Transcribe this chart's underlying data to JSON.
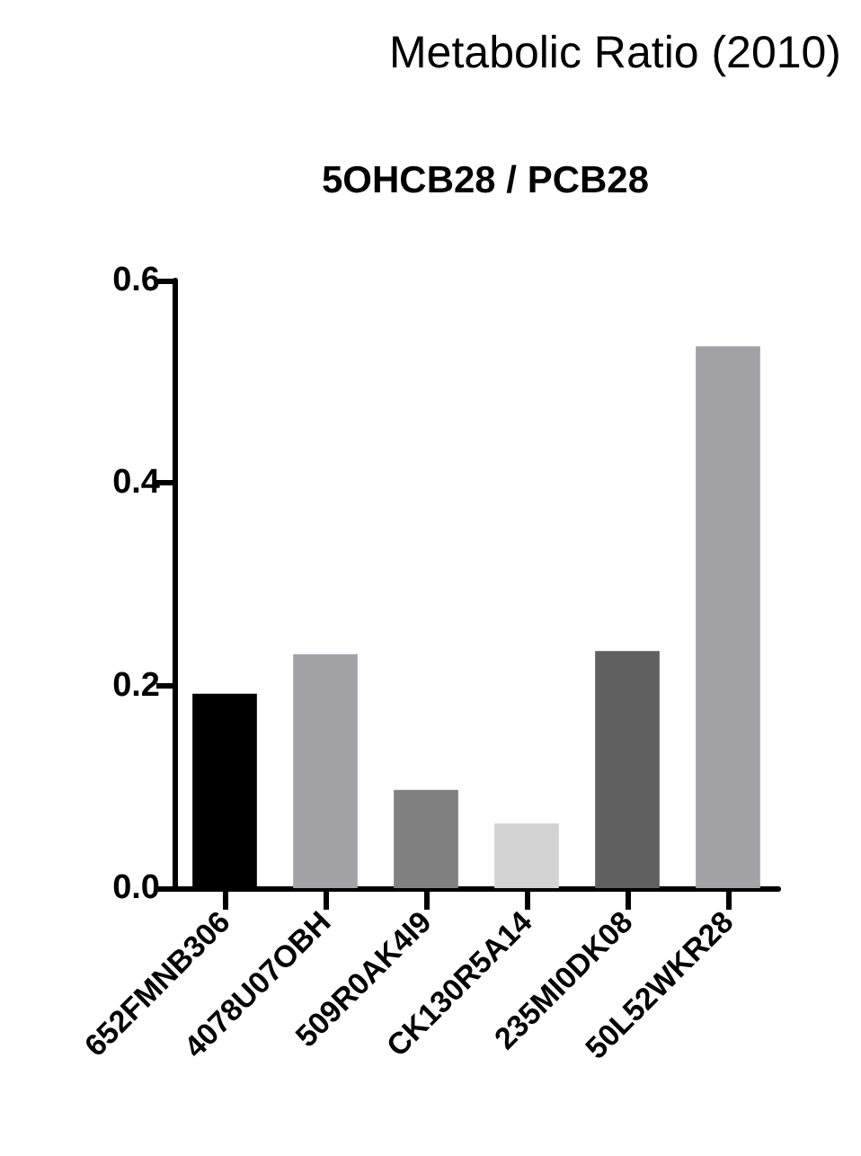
{
  "chart_data": {
    "type": "bar",
    "title": "Metabolic Ratio (2010)",
    "subtitle": "5OHCB28 / PCB28",
    "categories": [
      "652FMNB306",
      "4078U07OBH",
      "509R0AK4I9",
      "CK130R5A14",
      "235MI0DK08",
      "50L52WKR28"
    ],
    "values": [
      0.192,
      0.231,
      0.097,
      0.064,
      0.234,
      0.535
    ],
    "colors": [
      "#000000",
      "#a3a3a7",
      "#808080",
      "#d3d3d3",
      "#606060",
      "#a3a3a7"
    ],
    "ylim": [
      0,
      0.6
    ],
    "yticks": [
      {
        "value": 0,
        "label": "0.0"
      },
      0.2,
      0.4,
      0.6
    ],
    "grid": false
  }
}
